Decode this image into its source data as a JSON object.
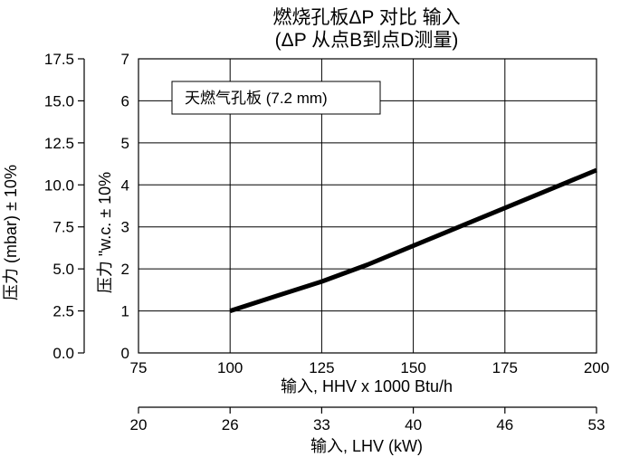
{
  "chart_data": {
    "type": "line",
    "title_line1": "燃烧孔板ΔP 对比 输入",
    "title_line2": "(ΔP 从点B到点D测量)",
    "legend_label": "天燃气孔板 (7.2 mm)",
    "xlabel": "输入, HHV x 1000 Btu/h",
    "xlabel_secondary": "输入, LHV (kW)",
    "ylabel_mbar": "压力 (mbar) ± 10%",
    "ylabel_wc": "压力 \"w.c. ± 10%",
    "xlim": [
      75,
      200
    ],
    "ylim": [
      0,
      7
    ],
    "x_ticks": [
      "75",
      "100",
      "125",
      "150",
      "175",
      "200"
    ],
    "x_tick_values": [
      75,
      100,
      125,
      150,
      175,
      200
    ],
    "kw_ticks": [
      "20",
      "26",
      "33",
      "40",
      "46",
      "53"
    ],
    "kw_tick_values": [
      75,
      100,
      125,
      150,
      175,
      200
    ],
    "y_wc_ticks": [
      "0",
      "1",
      "2",
      "3",
      "4",
      "5",
      "6",
      "7"
    ],
    "y_wc_values": [
      0,
      1,
      2,
      3,
      4,
      5,
      6,
      7
    ],
    "y_mbar_ticks": [
      "0.0",
      "2.5",
      "5.0",
      "7.5",
      "10.0",
      "12.5",
      "15.0",
      "17.5"
    ],
    "y_mbar_values": [
      0,
      1,
      2,
      3,
      4,
      5,
      6,
      7
    ],
    "grid": true,
    "series": [
      {
        "name": "天燃气孔板 (7.2 mm)",
        "color": "#000000",
        "x": [
          100,
          112.5,
          125,
          137.5,
          150,
          162.5,
          175,
          187.5,
          200
        ],
        "y": [
          1.0,
          1.35,
          1.7,
          2.1,
          2.55,
          3.0,
          3.45,
          3.9,
          4.35
        ]
      }
    ]
  }
}
